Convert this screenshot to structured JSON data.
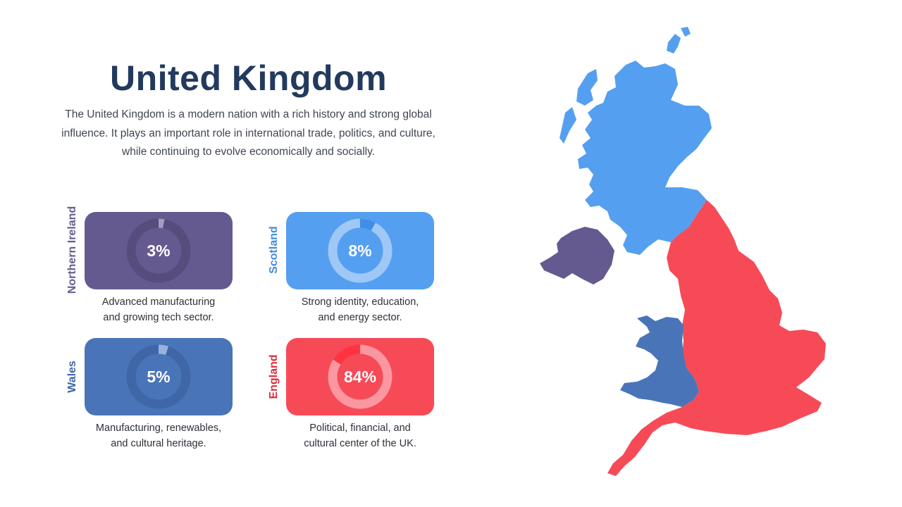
{
  "title": "United Kingdom",
  "description": "The United Kingdom is a modern nation with a rich history and strong global influence. It plays an important role in international trade, politics, and culture, while continuing to evolve economically and socially.",
  "colors": {
    "northern_ireland": "#655a8f",
    "scotland": "#559ff0",
    "wales": "#4a74b8",
    "england": "#f74a57",
    "title": "#223a5e"
  },
  "chart_data": {
    "type": "donut",
    "series": [
      {
        "name": "Northern Ireland",
        "value": 3,
        "label": "3%",
        "caption": [
          "Advanced manufacturing",
          "and growing tech sector."
        ]
      },
      {
        "name": "Scotland",
        "value": 8,
        "label": "8%",
        "caption": [
          "Strong identity, education,",
          "and energy sector."
        ]
      },
      {
        "name": "Wales",
        "value": 5,
        "label": "5%",
        "caption": [
          "Manufacturing, renewables,",
          "and cultural heritage."
        ]
      },
      {
        "name": "England",
        "value": 84,
        "label": "84%",
        "caption": [
          "Political, financial, and",
          "cultural center of the UK."
        ]
      }
    ]
  }
}
